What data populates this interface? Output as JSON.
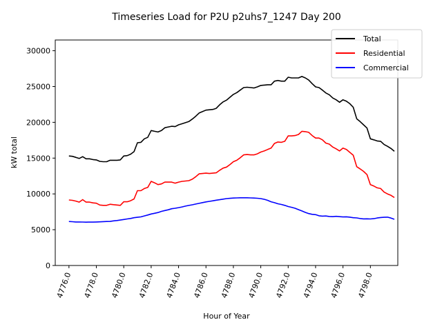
{
  "chart_data": {
    "type": "line",
    "title": "Timeseries Load for P2U p2uhs7_1247  Day 200",
    "xlabel": "Hour of Year",
    "ylabel": "kW total",
    "xlim": [
      4775.0,
      4800.0
    ],
    "ylim": [
      0,
      31500
    ],
    "xticks": [
      "4776.0",
      "4778.0",
      "4780.0",
      "4782.0",
      "4784.0",
      "4786.0",
      "4788.0",
      "4790.0",
      "4792.0",
      "4794.0",
      "4796.0",
      "4798.0"
    ],
    "xtick_values": [
      4776,
      4778,
      4780,
      4782,
      4784,
      4786,
      4788,
      4790,
      4792,
      4794,
      4796,
      4798
    ],
    "yticks": [
      "0",
      "5000",
      "10000",
      "15000",
      "20000",
      "25000",
      "30000"
    ],
    "ytick_values": [
      0,
      5000,
      10000,
      15000,
      20000,
      25000,
      30000
    ],
    "legend_position": "top-right",
    "x": [
      4776.0,
      4776.25,
      4776.5,
      4776.75,
      4777.0,
      4777.25,
      4777.5,
      4777.75,
      4778.0,
      4778.25,
      4778.5,
      4778.75,
      4779.0,
      4779.25,
      4779.5,
      4779.75,
      4780.0,
      4780.25,
      4780.5,
      4780.75,
      4781.0,
      4781.25,
      4781.5,
      4781.75,
      4782.0,
      4782.25,
      4782.5,
      4782.75,
      4783.0,
      4783.25,
      4783.5,
      4783.75,
      4784.0,
      4784.25,
      4784.5,
      4784.75,
      4785.0,
      4785.25,
      4785.5,
      4785.75,
      4786.0,
      4786.25,
      4786.5,
      4786.75,
      4787.0,
      4787.25,
      4787.5,
      4787.75,
      4788.0,
      4788.25,
      4788.5,
      4788.75,
      4789.0,
      4789.25,
      4789.5,
      4789.75,
      4790.0,
      4790.25,
      4790.5,
      4790.75,
      4791.0,
      4791.25,
      4791.5,
      4791.75,
      4792.0,
      4792.25,
      4792.5,
      4792.75,
      4793.0,
      4793.25,
      4793.5,
      4793.75,
      4794.0,
      4794.25,
      4794.5,
      4794.75,
      4795.0,
      4795.25,
      4795.5,
      4795.75,
      4796.0,
      4796.25,
      4796.5,
      4796.75,
      4797.0,
      4797.25,
      4797.5,
      4797.75,
      4798.0,
      4798.25,
      4798.5,
      4798.75,
      4799.0,
      4799.25,
      4799.5,
      4799.75
    ],
    "series": [
      {
        "name": "Total",
        "color": "#000000",
        "values": [
          15300,
          15250,
          15100,
          14950,
          15200,
          14900,
          14900,
          14800,
          14750,
          14550,
          14500,
          14500,
          14700,
          14700,
          14700,
          14750,
          15300,
          15350,
          15550,
          15900,
          17150,
          17200,
          17700,
          17900,
          18850,
          18750,
          18650,
          18850,
          19250,
          19350,
          19450,
          19400,
          19650,
          19800,
          19950,
          20100,
          20450,
          20850,
          21300,
          21500,
          21700,
          21750,
          21800,
          21950,
          22450,
          22850,
          23100,
          23500,
          23900,
          24150,
          24500,
          24850,
          24900,
          24850,
          24800,
          24950,
          25150,
          25200,
          25250,
          25250,
          25750,
          25850,
          25750,
          25750,
          26300,
          26200,
          26200,
          26200,
          26400,
          26200,
          25900,
          25400,
          24950,
          24850,
          24500,
          24100,
          23850,
          23400,
          23150,
          22800,
          23150,
          22950,
          22600,
          22100,
          20500,
          20100,
          19650,
          19200,
          17700,
          17550,
          17400,
          17350,
          16900,
          16650,
          16350,
          15950
        ]
      },
      {
        "name": "Residential",
        "color": "#ff0000",
        "values": [
          9150,
          9100,
          9000,
          8850,
          9200,
          8850,
          8850,
          8750,
          8700,
          8450,
          8400,
          8400,
          8550,
          8500,
          8450,
          8400,
          8900,
          8900,
          9050,
          9300,
          10450,
          10450,
          10750,
          10900,
          11750,
          11550,
          11300,
          11400,
          11650,
          11650,
          11650,
          11500,
          11650,
          11750,
          11800,
          11850,
          12050,
          12400,
          12800,
          12850,
          12900,
          12850,
          12900,
          12950,
          13300,
          13600,
          13750,
          14100,
          14500,
          14700,
          15050,
          15450,
          15500,
          15450,
          15450,
          15600,
          15850,
          16000,
          16200,
          16400,
          17050,
          17250,
          17200,
          17350,
          18100,
          18100,
          18150,
          18300,
          18750,
          18700,
          18600,
          18150,
          17800,
          17800,
          17550,
          17100,
          16950,
          16550,
          16300,
          16000,
          16400,
          16200,
          15800,
          15400,
          13800,
          13500,
          13150,
          12700,
          11300,
          11100,
          10850,
          10750,
          10250,
          10000,
          9800,
          9500
        ]
      },
      {
        "name": "Commercial",
        "color": "#0000ff",
        "values": [
          6150,
          6120,
          6080,
          6080,
          6070,
          6050,
          6070,
          6060,
          6080,
          6100,
          6130,
          6150,
          6160,
          6230,
          6280,
          6350,
          6430,
          6500,
          6570,
          6680,
          6730,
          6790,
          6930,
          7050,
          7200,
          7290,
          7400,
          7560,
          7680,
          7780,
          7930,
          8000,
          8080,
          8180,
          8290,
          8390,
          8480,
          8580,
          8680,
          8790,
          8880,
          8960,
          9040,
          9120,
          9190,
          9270,
          9340,
          9380,
          9420,
          9440,
          9460,
          9460,
          9460,
          9440,
          9420,
          9390,
          9340,
          9250,
          9100,
          8900,
          8780,
          8620,
          8530,
          8400,
          8240,
          8130,
          8000,
          7800,
          7620,
          7420,
          7250,
          7150,
          7100,
          6950,
          6900,
          6920,
          6850,
          6820,
          6870,
          6820,
          6780,
          6800,
          6750,
          6680,
          6650,
          6560,
          6510,
          6520,
          6500,
          6540,
          6640,
          6700,
          6730,
          6750,
          6630,
          6450
        ]
      }
    ]
  }
}
